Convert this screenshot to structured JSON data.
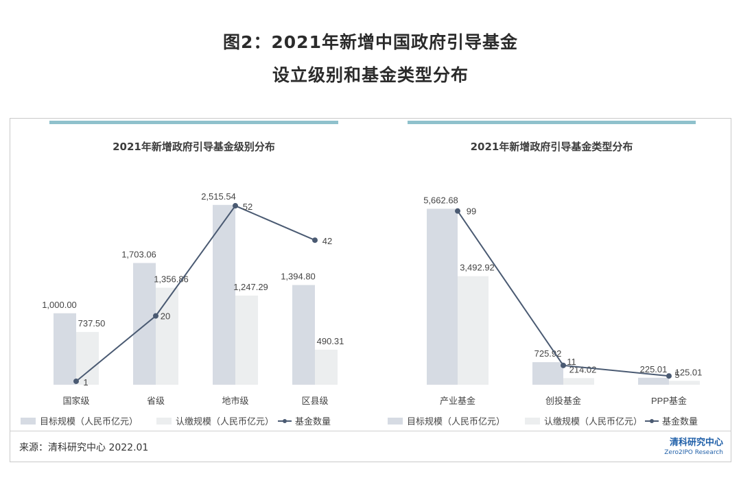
{
  "header": {
    "title_line1": "图2：2021年新增中国政府引导基金",
    "title_line2": "设立级别和基金类型分布"
  },
  "footer": {
    "source": "来源：清科研究中心 2022.01",
    "logo_cn": "清科研究中心",
    "logo_en": "Zero2IPO Research"
  },
  "colors": {
    "target_bar": "#d6dbe3",
    "subscribed_bar": "#eceeef",
    "line": "#4a5a72",
    "accent": "#8fc1cc"
  },
  "chart_data": [
    {
      "type": "bar",
      "title": "2021年新增政府引导基金级别分布",
      "categories": [
        "国家级",
        "省级",
        "地市级",
        "区县级"
      ],
      "series": [
        {
          "name": "目标规模（人民币亿元）",
          "kind": "bar",
          "values": [
            1000.0,
            1703.06,
            2515.54,
            1394.8
          ],
          "labels": [
            "1,000.00",
            "1,703.06",
            "2,515.54",
            "1,394.80"
          ]
        },
        {
          "name": "认缴规模（人民币亿元）",
          "kind": "bar",
          "values": [
            737.5,
            1356.86,
            1247.29,
            490.31
          ],
          "labels": [
            "737.50",
            "1,356.86",
            "1,247.29",
            "490.31"
          ]
        },
        {
          "name": "基金数量",
          "kind": "line",
          "values": [
            1,
            20,
            52,
            42
          ],
          "labels": [
            "1",
            "20",
            "52",
            "42"
          ]
        }
      ],
      "ylim_bar": [
        0,
        2600
      ],
      "ylim_line": [
        0,
        54
      ]
    },
    {
      "type": "bar",
      "title": "2021年新增政府引导基金类型分布",
      "categories": [
        "产业基金",
        "创投基金",
        "PPP基金"
      ],
      "series": [
        {
          "name": "目标规模（人民币亿元）",
          "kind": "bar",
          "values": [
            5662.68,
            725.92,
            225.01
          ],
          "labels": [
            "5,662.68",
            "725.92",
            "225.01"
          ]
        },
        {
          "name": "认缴规模（人民币亿元）",
          "kind": "bar",
          "values": [
            3492.92,
            214.02,
            125.01
          ],
          "labels": [
            "3,492.92",
            "214.02",
            "125.01"
          ]
        },
        {
          "name": "基金数量",
          "kind": "line",
          "values": [
            99,
            11,
            5
          ],
          "labels": [
            "99",
            "11",
            "5"
          ]
        }
      ],
      "ylim_bar": [
        0,
        5760
      ],
      "ylim_line": [
        0,
        102
      ]
    }
  ]
}
